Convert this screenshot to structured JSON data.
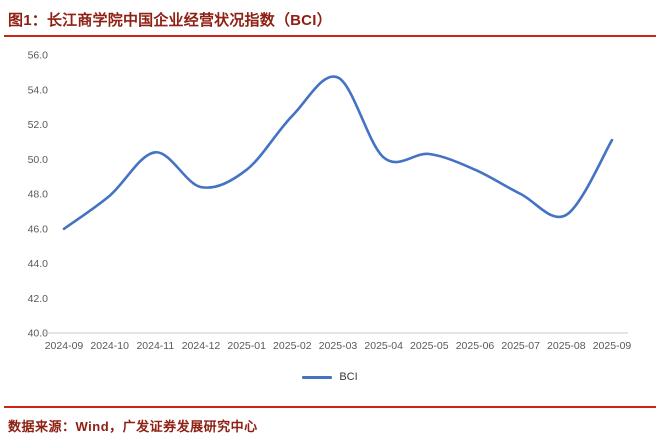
{
  "header": {
    "title": "图1：长江商学院中国企业经营状况指数（BCI）"
  },
  "legend": {
    "label": "BCI"
  },
  "footer": {
    "source": "数据来源：Wind，广发证券发展研究中心"
  },
  "colors": {
    "title_red": "#8e2014",
    "rule_red": "#d02318",
    "line_blue": "#4472C4",
    "axis_text": "#595959",
    "axis_line": "#c9c9c9"
  },
  "chart_data": {
    "type": "line",
    "title": "图1：长江商学院中国企业经营状况指数（BCI）",
    "xlabel": "",
    "ylabel": "",
    "x": [
      "2024-09",
      "2024-10",
      "2024-11",
      "2024-12",
      "2025-01",
      "2025-02",
      "2025-03",
      "2025-04",
      "2025-05",
      "2025-06",
      "2025-07",
      "2025-08",
      "2025-09"
    ],
    "series": [
      {
        "name": "BCI",
        "values": [
          46.0,
          47.9,
          50.4,
          48.4,
          49.4,
          52.5,
          54.7,
          50.1,
          50.3,
          49.4,
          48.0,
          46.8,
          51.1
        ]
      }
    ],
    "ylim": [
      40,
      56
    ],
    "ytick_step": 2,
    "grid": false,
    "legend_position": "bottom"
  }
}
